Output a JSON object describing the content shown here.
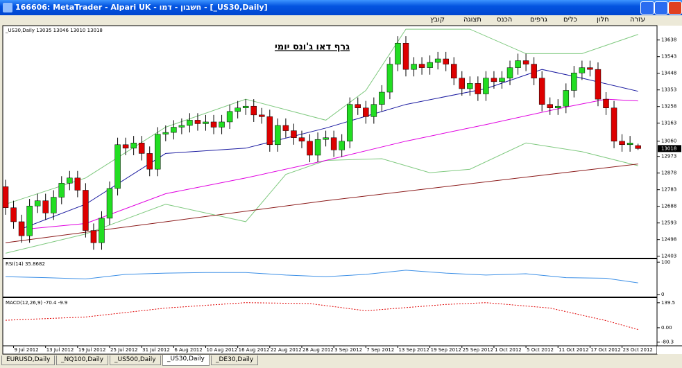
{
  "window": {
    "title": "166606: MetaTrader - Alpari UK - חשבון - דמו - [_US30,Daily]",
    "menu": [
      "קובץ",
      "תצוגה",
      "הכנס",
      "גרפים",
      "כלים",
      "חלון",
      "עזרה"
    ]
  },
  "chart_data": [
    {
      "type": "candlestick",
      "header": "_US30,Daily  13035 13046 13010 13018",
      "title": "גרף דאו ג'ונס יומי",
      "up_color": "#22dd22",
      "down_color": "#dd0000",
      "ylim": [
        12390,
        13720
      ],
      "yticks": [
        12403,
        12498,
        12593,
        12688,
        12783,
        12878,
        12973,
        13060,
        13163,
        13258,
        13353,
        13448,
        13543,
        13638
      ],
      "last_price": 13018,
      "xticks": [
        {
          "value": 1,
          "label": "9 Jul 2012"
        },
        {
          "value": 5,
          "label": "13 Jul 2012"
        },
        {
          "value": 9,
          "label": "19 Jul 2012"
        },
        {
          "value": 13,
          "label": "25 Jul 2012"
        },
        {
          "value": 17,
          "label": "31 Jul 2012"
        },
        {
          "value": 21,
          "label": "6 Aug 2012"
        },
        {
          "value": 25,
          "label": "10 Aug 2012"
        },
        {
          "value": 29,
          "label": "16 Aug 2012"
        },
        {
          "value": 33,
          "label": "22 Aug 2012"
        },
        {
          "value": 37,
          "label": "28 Aug 2012"
        },
        {
          "value": 41,
          "label": "3 Sep 2012"
        },
        {
          "value": 45,
          "label": "7 Sep 2012"
        },
        {
          "value": 49,
          "label": "13 Sep 2012"
        },
        {
          "value": 53,
          "label": "19 Sep 2012"
        },
        {
          "value": 57,
          "label": "25 Sep 2012"
        },
        {
          "value": 61,
          "label": "1 Oct 2012"
        },
        {
          "value": 65,
          "label": "5 Oct 2012"
        },
        {
          "value": 69,
          "label": "11 Oct 2012"
        },
        {
          "value": 73,
          "label": "17 Oct 2012"
        },
        {
          "value": 77,
          "label": "23 Oct 2012"
        }
      ],
      "open": [
        12800,
        12680,
        12600,
        12520,
        12690,
        12720,
        12650,
        12740,
        12820,
        12850,
        12780,
        12550,
        12480,
        12620,
        12790,
        13040,
        13020,
        13050,
        12990,
        12900,
        13100,
        13110,
        13140,
        13150,
        13180,
        13160,
        13170,
        13140,
        13170,
        13230,
        13250,
        13260,
        13210,
        13200,
        13040,
        13150,
        13120,
        13080,
        13060,
        12980,
        13070,
        13080,
        13010,
        13060,
        13270,
        13250,
        13200,
        13270,
        13340,
        13500,
        13620,
        13470,
        13500,
        13480,
        13510,
        13530,
        13500,
        13420,
        13360,
        13390,
        13330,
        13420,
        13400,
        13420,
        13480,
        13520,
        13500,
        13420,
        13270,
        13250,
        13260,
        13350,
        13450,
        13480,
        13470,
        13300,
        13250,
        13060,
        13040,
        13035
      ],
      "high": [
        12840,
        12720,
        12640,
        12730,
        12760,
        12760,
        12780,
        12860,
        12890,
        12890,
        12820,
        12590,
        12660,
        12830,
        13080,
        13080,
        13090,
        13090,
        13030,
        13140,
        13150,
        13180,
        13190,
        13220,
        13220,
        13210,
        13210,
        13210,
        13270,
        13290,
        13300,
        13300,
        13250,
        13240,
        13190,
        13190,
        13160,
        13120,
        13100,
        13110,
        13120,
        13120,
        13100,
        13310,
        13310,
        13290,
        13310,
        13380,
        13540,
        13660,
        13660,
        13540,
        13540,
        13550,
        13570,
        13570,
        13540,
        13460,
        13430,
        13430,
        13460,
        13460,
        13460,
        13520,
        13560,
        13560,
        13540,
        13460,
        13310,
        13300,
        13390,
        13490,
        13520,
        13520,
        13510,
        13340,
        13290,
        13100,
        13090,
        13046
      ],
      "low": [
        12640,
        12560,
        12480,
        12480,
        12650,
        12610,
        12610,
        12700,
        12780,
        12740,
        12510,
        12440,
        12440,
        12580,
        12750,
        12980,
        12980,
        12950,
        12860,
        12860,
        13060,
        13070,
        13100,
        13110,
        13120,
        13120,
        13100,
        13100,
        13130,
        13190,
        13210,
        13170,
        13160,
        13000,
        13000,
        13080,
        13040,
        13020,
        12940,
        12940,
        13030,
        12970,
        12970,
        13020,
        13210,
        13160,
        13160,
        13230,
        13300,
        13460,
        13430,
        13430,
        13440,
        13440,
        13470,
        13460,
        13380,
        13320,
        13320,
        13290,
        13290,
        13360,
        13360,
        13380,
        13440,
        13460,
        13380,
        13230,
        13210,
        13210,
        13220,
        13310,
        13410,
        13430,
        13260,
        13210,
        13020,
        13000,
        13000,
        13010
      ],
      "close": [
        12680,
        12600,
        12520,
        12690,
        12720,
        12650,
        12740,
        12820,
        12850,
        12780,
        12550,
        12480,
        12620,
        12790,
        13040,
        13020,
        13050,
        12990,
        12900,
        13100,
        13110,
        13140,
        13150,
        13180,
        13160,
        13170,
        13140,
        13170,
        13230,
        13250,
        13260,
        13210,
        13200,
        13040,
        13150,
        13120,
        13080,
        13060,
        12980,
        13070,
        13080,
        13010,
        13060,
        13270,
        13250,
        13200,
        13270,
        13340,
        13500,
        13620,
        13470,
        13500,
        13480,
        13510,
        13530,
        13500,
        13420,
        13360,
        13390,
        13330,
        13420,
        13400,
        13420,
        13480,
        13520,
        13500,
        13420,
        13270,
        13250,
        13260,
        13350,
        13450,
        13480,
        13470,
        13300,
        13250,
        13060,
        13040,
        13050,
        13018
      ],
      "series": [
        {
          "color": "#7fc97f",
          "x": [
            0,
            10,
            20,
            30,
            40,
            45,
            50,
            58,
            65,
            72,
            79
          ],
          "values": [
            12700,
            12850,
            13140,
            13300,
            13180,
            13350,
            13700,
            13700,
            13560,
            13560,
            13670
          ]
        },
        {
          "color": "#7fc97f",
          "x": [
            0,
            10,
            20,
            30,
            35,
            40,
            47,
            53,
            58,
            65,
            72,
            79
          ],
          "values": [
            12420,
            12530,
            12700,
            12600,
            12870,
            12950,
            12960,
            12880,
            12900,
            13050,
            13000,
            12920
          ]
        },
        {
          "color": "#8b1a1a",
          "x": [
            0,
            40,
            79
          ],
          "values": [
            12480,
            12720,
            12930
          ]
        },
        {
          "color": "#e000e0",
          "x": [
            3,
            10,
            20,
            30,
            40,
            50,
            60,
            70,
            75,
            79
          ],
          "values": [
            12560,
            12590,
            12760,
            12850,
            12950,
            13060,
            13155,
            13255,
            13300,
            13290
          ]
        },
        {
          "color": "#1a1aa0",
          "x": [
            2,
            10,
            20,
            30,
            40,
            50,
            60,
            67,
            72,
            79
          ],
          "values": [
            12560,
            12700,
            12990,
            13020,
            13135,
            13270,
            13360,
            13470,
            13420,
            13345
          ]
        }
      ]
    },
    {
      "type": "line",
      "label": "RSI(14) 35.8682",
      "color": "#3a8ee6",
      "ylim": [
        -9,
        107
      ],
      "yticks": [
        0,
        100
      ],
      "x": [
        0,
        5,
        10,
        15,
        20,
        25,
        30,
        35,
        40,
        45,
        50,
        55,
        60,
        65,
        70,
        75,
        79
      ],
      "values": [
        55,
        52,
        48,
        62,
        66,
        68,
        68,
        60,
        55,
        62,
        75,
        66,
        60,
        64,
        52,
        50,
        36
      ]
    },
    {
      "type": "line",
      "label": "MACD(12,26,9) -70.4 -9.9",
      "color": "#e00000",
      "ylim": [
        -97,
        166
      ],
      "yticks": [
        -80.3,
        {
          "value": 0,
          "label": "0.00"
        },
        139.5
      ],
      "x": [
        0,
        10,
        20,
        30,
        38,
        45,
        55,
        60,
        68,
        75,
        79
      ],
      "values": [
        42,
        60,
        110,
        140,
        135,
        95,
        130,
        140,
        110,
        40,
        -10
      ]
    }
  ],
  "tabs": [
    "EURUSD,Daily",
    "_NQ100,Daily",
    "_US500,Daily",
    "_US30,Daily",
    "_DE30,Daily"
  ]
}
